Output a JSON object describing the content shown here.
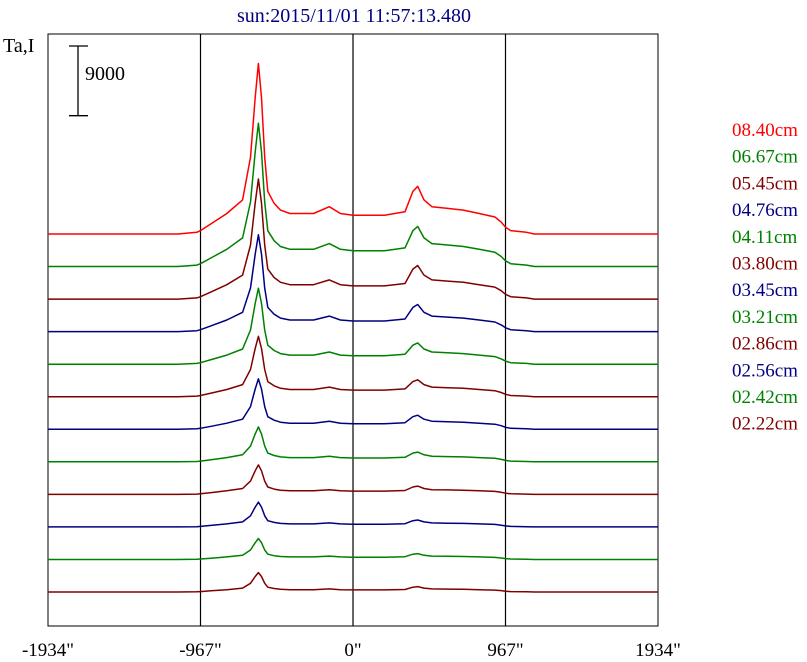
{
  "chart_data": {
    "type": "line",
    "title": "sun:2015/11/01 11:57:13.480",
    "ylabel": "Ta,I",
    "scale_bar_label": "9000",
    "scale_bar_value": 9000,
    "xlim": [
      -1934,
      1934
    ],
    "x_ticks": [
      {
        "value": -1934,
        "label": "-1934\""
      },
      {
        "value": -967,
        "label": "-967\""
      },
      {
        "value": 0,
        "label": "0\""
      },
      {
        "value": 967,
        "label": "967\""
      },
      {
        "value": 1934,
        "label": "1934\""
      }
    ],
    "vertical_gridlines": [
      -967,
      0,
      967
    ],
    "profile_x": [
      -1934,
      -1110,
      -990,
      -967,
      -900,
      -800,
      -700,
      -650,
      -620,
      -600,
      -580,
      -560,
      -540,
      -500,
      -460,
      -400,
      -250,
      -150,
      -80,
      0,
      100,
      200,
      330,
      380,
      410,
      450,
      500,
      600,
      700,
      800,
      900,
      940,
      967,
      1000,
      1100,
      1150,
      1934
    ],
    "profile_shape": [
      0,
      0,
      0.01,
      0.02,
      0.06,
      0.12,
      0.2,
      0.45,
      0.8,
      1.0,
      0.8,
      0.45,
      0.25,
      0.18,
      0.14,
      0.12,
      0.12,
      0.16,
      0.12,
      0.11,
      0.11,
      0.11,
      0.13,
      0.25,
      0.28,
      0.2,
      0.16,
      0.15,
      0.14,
      0.12,
      0.1,
      0.07,
      0.04,
      0.02,
      0.01,
      0,
      0
    ],
    "series": [
      {
        "name": "08.40cm",
        "color": "#ff0000",
        "baseline": 0,
        "peak": 22000
      },
      {
        "name": "06.67cm",
        "color": "#008000",
        "baseline": -4200,
        "peak": 18500
      },
      {
        "name": "05.45cm",
        "color": "#800000",
        "baseline": -8400,
        "peak": 15500
      },
      {
        "name": "04.76cm",
        "color": "#000080",
        "baseline": -12600,
        "peak": 12500
      },
      {
        "name": "04.11cm",
        "color": "#008000",
        "baseline": -16800,
        "peak": 9800
      },
      {
        "name": "03.80cm",
        "color": "#800000",
        "baseline": -21000,
        "peak": 7800
      },
      {
        "name": "03.45cm",
        "color": "#000080",
        "baseline": -25200,
        "peak": 6500
      },
      {
        "name": "03.21cm",
        "color": "#008000",
        "baseline": -29400,
        "peak": 4500
      },
      {
        "name": "02.86cm",
        "color": "#800000",
        "baseline": -33600,
        "peak": 3800
      },
      {
        "name": "02.56cm",
        "color": "#000080",
        "baseline": -37800,
        "peak": 3200
      },
      {
        "name": "02.42cm",
        "color": "#008000",
        "baseline": -42000,
        "peak": 2700
      },
      {
        "name": "02.22cm",
        "color": "#800000",
        "baseline": -46200,
        "peak": 2500
      }
    ],
    "colors": {
      "title": "#000080",
      "axis": "#000000",
      "gridline": "#000000"
    }
  }
}
